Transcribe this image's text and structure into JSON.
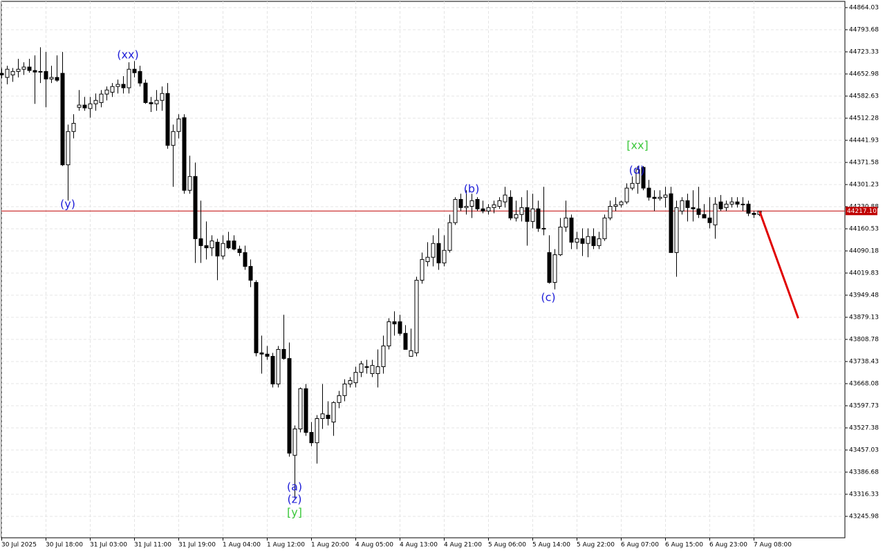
{
  "chart_data": {
    "type": "candlestick",
    "categories": [
      "30 Jul 2025",
      null,
      null,
      null,
      null,
      null,
      null,
      null,
      "30 Jul 18:00",
      null,
      null,
      null,
      null,
      null,
      null,
      null,
      "31 Jul 03:00",
      null,
      null,
      null,
      null,
      null,
      null,
      null,
      "31 Jul 11:00",
      null,
      null,
      null,
      null,
      null,
      null,
      null,
      "31 Jul 19:00",
      null,
      null,
      null,
      null,
      null,
      null,
      null,
      "1 Aug 04:00",
      null,
      null,
      null,
      null,
      null,
      null,
      null,
      "1 Aug 12:00",
      null,
      null,
      null,
      null,
      null,
      null,
      null,
      "1 Aug 20:00",
      null,
      null,
      null,
      null,
      null,
      null,
      null,
      "4 Aug 05:00",
      null,
      null,
      null,
      null,
      null,
      null,
      null,
      "4 Aug 13:00",
      null,
      null,
      null,
      null,
      null,
      null,
      null,
      "4 Aug 21:00",
      null,
      null,
      null,
      null,
      null,
      null,
      null,
      "5 Aug 06:00",
      null,
      null,
      null,
      null,
      null,
      null,
      null,
      "5 Aug 14:00",
      null,
      null,
      null,
      null,
      null,
      null,
      null,
      "5 Aug 22:00",
      null,
      null,
      null,
      null,
      null,
      null,
      null,
      "6 Aug 07:00",
      null,
      null,
      null,
      null,
      null,
      null,
      null,
      "6 Aug 15:00",
      null,
      null,
      null,
      null,
      null,
      null,
      null,
      "6 Aug 23:00",
      null,
      null,
      null,
      null,
      null,
      null,
      null,
      "7 Aug 08:00",
      null
    ],
    "ohlc": [
      [
        44655,
        44670,
        44640,
        44650
      ],
      [
        44642,
        44679,
        44620,
        44668
      ],
      [
        44650,
        44672,
        44628,
        44661
      ],
      [
        44661,
        44701,
        44642,
        44668
      ],
      [
        44668,
        44690,
        44650,
        44675
      ],
      [
        44675,
        44701,
        44657,
        44664
      ],
      [
        44664,
        44712,
        44558,
        44659
      ],
      [
        44659,
        44738,
        44624,
        44661
      ],
      [
        44661,
        44723,
        44547,
        44637
      ],
      [
        44637,
        44679,
        44624,
        44642
      ],
      [
        44642,
        44712,
        44628,
        44633
      ],
      [
        44655,
        44723,
        44360,
        44364
      ],
      [
        44364,
        44492,
        44250,
        44470
      ],
      [
        44470,
        44525,
        44448,
        44496
      ],
      [
        44547,
        44602,
        44536,
        44554
      ],
      [
        44554,
        44580,
        44536,
        44545
      ],
      [
        44543,
        44580,
        44514,
        44558
      ],
      [
        44558,
        44591,
        44536,
        44569
      ],
      [
        44562,
        44602,
        44547,
        44589
      ],
      [
        44589,
        44613,
        44569,
        44602
      ],
      [
        44595,
        44624,
        44580,
        44613
      ],
      [
        44613,
        44635,
        44591,
        44620
      ],
      [
        44620,
        44646,
        44591,
        44609
      ],
      [
        44609,
        44690,
        44591,
        44668
      ],
      [
        44668,
        44694,
        44642,
        44657
      ],
      [
        44661,
        44679,
        44613,
        44624
      ],
      [
        44624,
        44635,
        44558,
        44562
      ],
      [
        44562,
        44580,
        44532,
        44558
      ],
      [
        44558,
        44602,
        44536,
        44569
      ],
      [
        44569,
        44613,
        44536,
        44591
      ],
      [
        44591,
        44624,
        44415,
        44426
      ],
      [
        44426,
        44492,
        44294,
        44470
      ],
      [
        44470,
        44525,
        44448,
        44510
      ],
      [
        44514,
        44525,
        44272,
        44283
      ],
      [
        44283,
        44393,
        44272,
        44327
      ],
      [
        44327,
        44371,
        44052,
        44129
      ],
      [
        44129,
        44250,
        44052,
        44107
      ],
      [
        44107,
        44184,
        44063,
        44100
      ],
      [
        44100,
        44140,
        44074,
        44122
      ],
      [
        44118,
        44129,
        43997,
        44074
      ],
      [
        44074,
        44140,
        44063,
        44114
      ],
      [
        44122,
        44151,
        44096,
        44100
      ],
      [
        44122,
        44140,
        44092,
        44096
      ],
      [
        44096,
        44107,
        44074,
        44085
      ],
      [
        44085,
        44107,
        44030,
        44041
      ],
      [
        44041,
        44063,
        43975,
        43997
      ],
      [
        43990,
        43997,
        43755,
        43766
      ],
      [
        43766,
        43821,
        43700,
        43762
      ],
      [
        43762,
        43788,
        43744,
        43755
      ],
      [
        43755,
        43766,
        43656,
        43667
      ],
      [
        43667,
        43788,
        43656,
        43777
      ],
      [
        43777,
        43887,
        43744,
        43748
      ],
      [
        43748,
        43799,
        43436,
        43447
      ],
      [
        43440,
        43535,
        43304,
        43524
      ],
      [
        43524,
        43656,
        43513,
        43652
      ],
      [
        43652,
        43667,
        43502,
        43513
      ],
      [
        43513,
        43546,
        43469,
        43480
      ],
      [
        43480,
        43568,
        43414,
        43557
      ],
      [
        43557,
        43667,
        43524,
        43572
      ],
      [
        43568,
        43612,
        43535,
        43557
      ],
      [
        43546,
        43612,
        43502,
        43608
      ],
      [
        43608,
        43645,
        43590,
        43630
      ],
      [
        43630,
        43682,
        43612,
        43667
      ],
      [
        43667,
        43689,
        43656,
        43678
      ],
      [
        43671,
        43722,
        43656,
        43704
      ],
      [
        43704,
        43740,
        43689,
        43731
      ],
      [
        43722,
        43744,
        43700,
        43722
      ],
      [
        43700,
        43744,
        43689,
        43726
      ],
      [
        43700,
        43777,
        43656,
        43722
      ],
      [
        43722,
        43821,
        43700,
        43788
      ],
      [
        43788,
        43876,
        43777,
        43865
      ],
      [
        43865,
        43898,
        43821,
        43858
      ],
      [
        43865,
        43887,
        43821,
        43828
      ],
      [
        43828,
        43854,
        43777,
        43777
      ],
      [
        43755,
        43843,
        43755,
        43773
      ],
      [
        43766,
        44008,
        43755,
        43997
      ],
      [
        43997,
        44085,
        43986,
        44063
      ],
      [
        44056,
        44118,
        44041,
        44070
      ],
      [
        44070,
        44140,
        44041,
        44114
      ],
      [
        44114,
        44162,
        44030,
        44052
      ],
      [
        44052,
        44140,
        44041,
        44092
      ],
      [
        44092,
        44206,
        44085,
        44180
      ],
      [
        44180,
        44261,
        44173,
        44254
      ],
      [
        44254,
        44272,
        44217,
        44228
      ],
      [
        44228,
        44283,
        44206,
        44232
      ],
      [
        44232,
        44272,
        44195,
        44250
      ],
      [
        44254,
        44261,
        44217,
        44224
      ],
      [
        44224,
        44250,
        44210,
        44217
      ],
      [
        44217,
        44239,
        44206,
        44228
      ],
      [
        44228,
        44250,
        44210,
        44237
      ],
      [
        44232,
        44261,
        44224,
        44250
      ],
      [
        44246,
        44294,
        44228,
        44268
      ],
      [
        44261,
        44283,
        44188,
        44195
      ],
      [
        44195,
        44250,
        44184,
        44206
      ],
      [
        44206,
        44261,
        44184,
        44228
      ],
      [
        44228,
        44283,
        44107,
        44184
      ],
      [
        44184,
        44272,
        44162,
        44224
      ],
      [
        44224,
        44250,
        44151,
        44162
      ],
      [
        44162,
        44294,
        44140,
        44162
      ],
      [
        44085,
        44140,
        43986,
        43990
      ],
      [
        43990,
        44096,
        43968,
        44078
      ],
      [
        44078,
        44195,
        44074,
        44166
      ],
      [
        44166,
        44250,
        44151,
        44195
      ],
      [
        44195,
        44206,
        44096,
        44118
      ],
      [
        44118,
        44151,
        44096,
        44129
      ],
      [
        44129,
        44162,
        44074,
        44114
      ],
      [
        44114,
        44162,
        44070,
        44136
      ],
      [
        44136,
        44162,
        44096,
        44107
      ],
      [
        44107,
        44151,
        44096,
        44129
      ],
      [
        44129,
        44206,
        44122,
        44195
      ],
      [
        44195,
        44250,
        44188,
        44232
      ],
      [
        44232,
        44261,
        44217,
        44237
      ],
      [
        44237,
        44250,
        44228,
        44246
      ],
      [
        44246,
        44305,
        44239,
        44290
      ],
      [
        44290,
        44327,
        44283,
        44305
      ],
      [
        44305,
        44360,
        44272,
        44349
      ],
      [
        44356,
        44360,
        44283,
        44290
      ],
      [
        44290,
        44316,
        44250,
        44261
      ],
      [
        44261,
        44283,
        44217,
        44257
      ],
      [
        44257,
        44283,
        44250,
        44261
      ],
      [
        44261,
        44294,
        44228,
        44268
      ],
      [
        44272,
        44294,
        44085,
        44085
      ],
      [
        44085,
        44250,
        44008,
        44228
      ],
      [
        44217,
        44261,
        44206,
        44250
      ],
      [
        44250,
        44272,
        44184,
        44228
      ],
      [
        44228,
        44283,
        44184,
        44224
      ],
      [
        44224,
        44294,
        44195,
        44206
      ],
      [
        44206,
        44239,
        44195,
        44195
      ],
      [
        44195,
        44261,
        44162,
        44180
      ],
      [
        44173,
        44261,
        44129,
        44239
      ],
      [
        44246,
        44268,
        44217,
        44224
      ],
      [
        44228,
        44250,
        44217,
        44239
      ],
      [
        44239,
        44261,
        44228,
        44246
      ],
      [
        44246,
        44261,
        44228,
        44239
      ],
      [
        44239,
        44261,
        44217,
        44237
      ],
      [
        44239,
        44250,
        44201,
        44210
      ],
      [
        44210,
        44217,
        44195,
        44206
      ],
      [
        44206,
        44217,
        44201,
        44217
      ]
    ],
    "up_color": "#ffffff",
    "down_color": "#000000",
    "ylim": [
      43177.83,
      44883.82
    ],
    "yticks": [
      44864.03,
      44793.68,
      44723.33,
      44652.98,
      44582.63,
      44512.28,
      44441.93,
      44371.58,
      44301.23,
      44230.88,
      44160.53,
      44090.18,
      44019.83,
      43949.48,
      43879.13,
      43808.78,
      43738.43,
      43668.08,
      43597.73,
      43527.38,
      43457.03,
      43386.68,
      43316.33,
      43245.98
    ],
    "grid": true,
    "current_price": {
      "value": 44217.1,
      "label": "44217.10",
      "color": "#c00000"
    },
    "forecast": {
      "x": [
        137,
        144
      ],
      "values": [
        44217,
        43876
      ],
      "color": "#e00000"
    },
    "annotations": [
      {
        "text": "(xx)",
        "color": "#1c1cd8"
      },
      {
        "text": "(y)",
        "color": "#1c1cd8"
      },
      {
        "text": "(a)",
        "color": "#1c1cd8"
      },
      {
        "text": "(z)",
        "color": "#1c1cd8"
      },
      {
        "text": "[y]",
        "color": "#3cc83c"
      },
      {
        "text": "(b)",
        "color": "#1c1cd8"
      },
      {
        "text": "(c)",
        "color": "#1c1cd8"
      },
      {
        "text": "[xx]",
        "color": "#3cc83c"
      },
      {
        "text": "(d)",
        "color": "#1c1cd8"
      }
    ]
  }
}
